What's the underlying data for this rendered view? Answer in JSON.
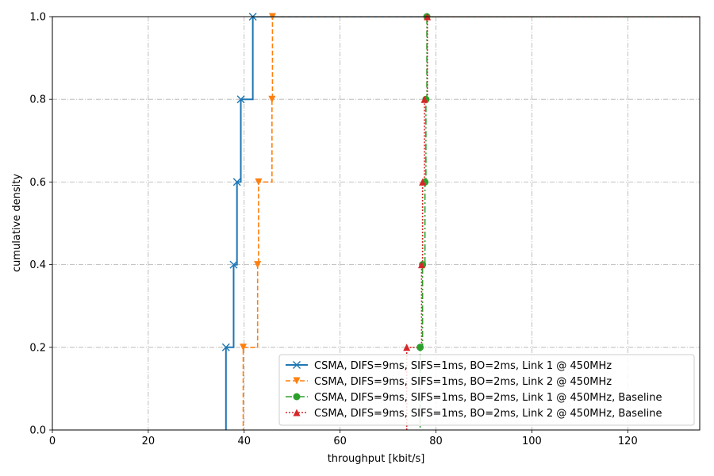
{
  "chart_data": {
    "type": "line",
    "step": "post",
    "xlabel": "throughput [kbit/s]",
    "ylabel": "cumulative density",
    "xlim": [
      0,
      135
    ],
    "ylim": [
      0,
      1.0
    ],
    "xticks": [
      0,
      20,
      40,
      60,
      80,
      100,
      120
    ],
    "yticks": [
      0.0,
      0.2,
      0.4,
      0.6,
      0.8,
      1.0
    ],
    "xtick_labels": [
      "0",
      "20",
      "40",
      "60",
      "80",
      "100",
      "120"
    ],
    "ytick_labels": [
      "0.0",
      "0.2",
      "0.4",
      "0.6",
      "0.8",
      "1.0"
    ],
    "grid": true,
    "grid_style": "dash-dot",
    "legend_position": "lower-right",
    "series": [
      {
        "name": "CSMA, DIFS=9ms, SIFS=1ms, BO=2ms, Link 1 @ 450MHz",
        "color": "#1f77b4",
        "line_style": "solid",
        "marker": "x",
        "x": [
          36.2,
          37.8,
          38.5,
          39.3,
          41.8
        ],
        "y": [
          0.2,
          0.4,
          0.6,
          0.8,
          1.0
        ]
      },
      {
        "name": "CSMA, DIFS=9ms, SIFS=1ms, BO=2ms, Link 2 @ 450MHz",
        "color": "#ff7f0e",
        "line_style": "dashed",
        "marker": "triangle-down",
        "x": [
          39.8,
          42.8,
          43.0,
          45.8,
          45.9
        ],
        "y": [
          0.2,
          0.4,
          0.6,
          0.8,
          1.0
        ]
      },
      {
        "name": "CSMA, DIFS=9ms, SIFS=1ms, BO=2ms, Link 1 @ 450MHz,  Baseline",
        "color": "#2ca02c",
        "line_style": "dashdot",
        "marker": "circle",
        "x": [
          76.7,
          77.2,
          77.7,
          77.9,
          78.1
        ],
        "y": [
          0.2,
          0.4,
          0.6,
          0.8,
          1.0
        ]
      },
      {
        "name": "CSMA, DIFS=9ms, SIFS=1ms, BO=2ms, Link 2 @ 450MHz,  Baseline",
        "color": "#d62728",
        "line_style": "dotted",
        "marker": "triangle-up",
        "x": [
          73.9,
          77.0,
          77.2,
          77.6,
          78.2
        ],
        "y": [
          0.2,
          0.4,
          0.6,
          0.8,
          1.0
        ]
      }
    ]
  }
}
